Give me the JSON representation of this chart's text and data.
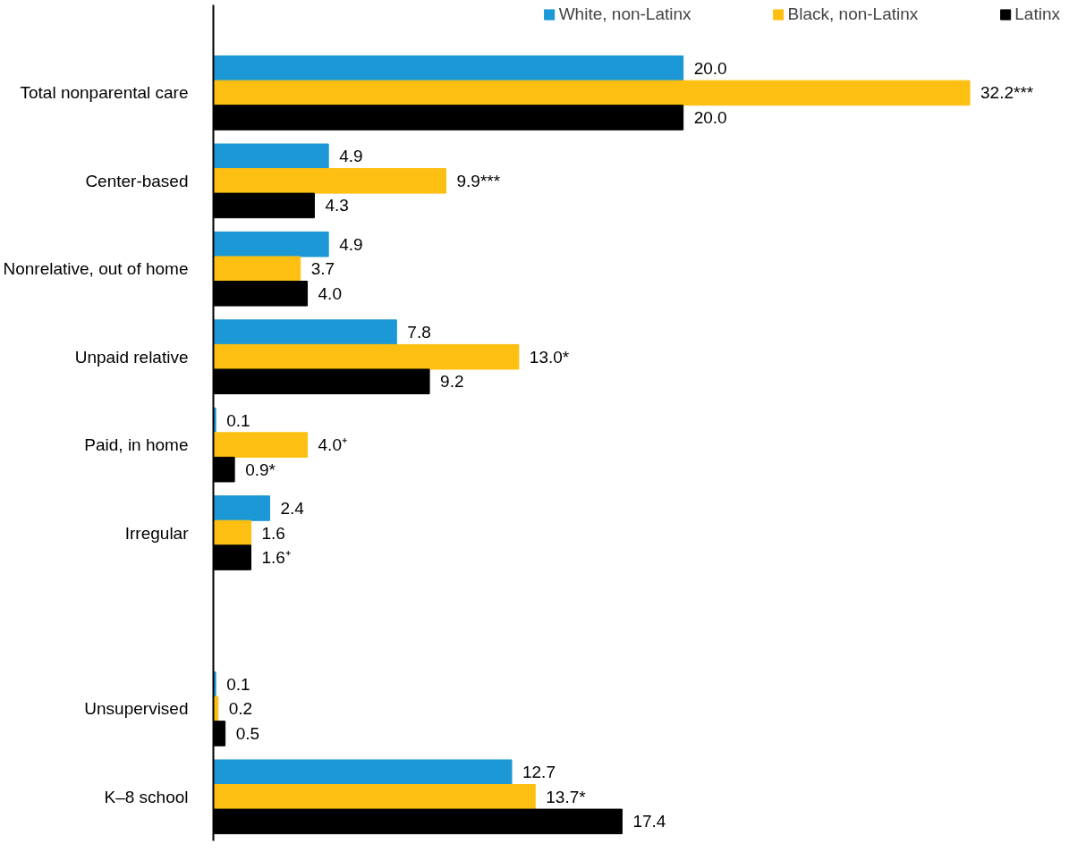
{
  "chart_data": {
    "type": "bar",
    "orientation": "horizontal",
    "categories": [
      "Total nonparental care",
      "Center-based",
      "Nonrelative, out of home",
      "Unpaid relative",
      "Paid, in home",
      "Irregular",
      null,
      "Unsupervised",
      "K–8 school"
    ],
    "series": [
      {
        "name": "White, non-Latinx",
        "color": "#1b98d5",
        "values": [
          20.0,
          4.9,
          4.9,
          7.8,
          0.1,
          2.4,
          null,
          0.1,
          12.7
        ],
        "value_labels": [
          "20.0",
          "4.9",
          "4.9",
          "7.8",
          "0.1",
          "2.4",
          null,
          "0.1",
          "12.7"
        ]
      },
      {
        "name": "Black, non-Latinx",
        "color": "#fdbf11",
        "values": [
          32.2,
          9.9,
          3.7,
          13.0,
          4.0,
          1.6,
          null,
          0.2,
          13.7
        ],
        "value_labels": [
          "32.2***",
          "9.9***",
          "3.7",
          "13.0*",
          "4.0⁺",
          "1.6",
          null,
          "0.2",
          "13.7*"
        ]
      },
      {
        "name": "Latinx",
        "color": "#000000",
        "values": [
          20.0,
          4.3,
          4.0,
          9.2,
          0.9,
          1.6,
          null,
          0.5,
          17.4
        ],
        "value_labels": [
          "20.0",
          "4.3",
          "4.0",
          "9.2",
          "0.9*",
          "1.6⁺",
          null,
          "0.5",
          "17.4"
        ]
      }
    ],
    "tick_labels": "y",
    "grid": false,
    "legend": "top"
  }
}
